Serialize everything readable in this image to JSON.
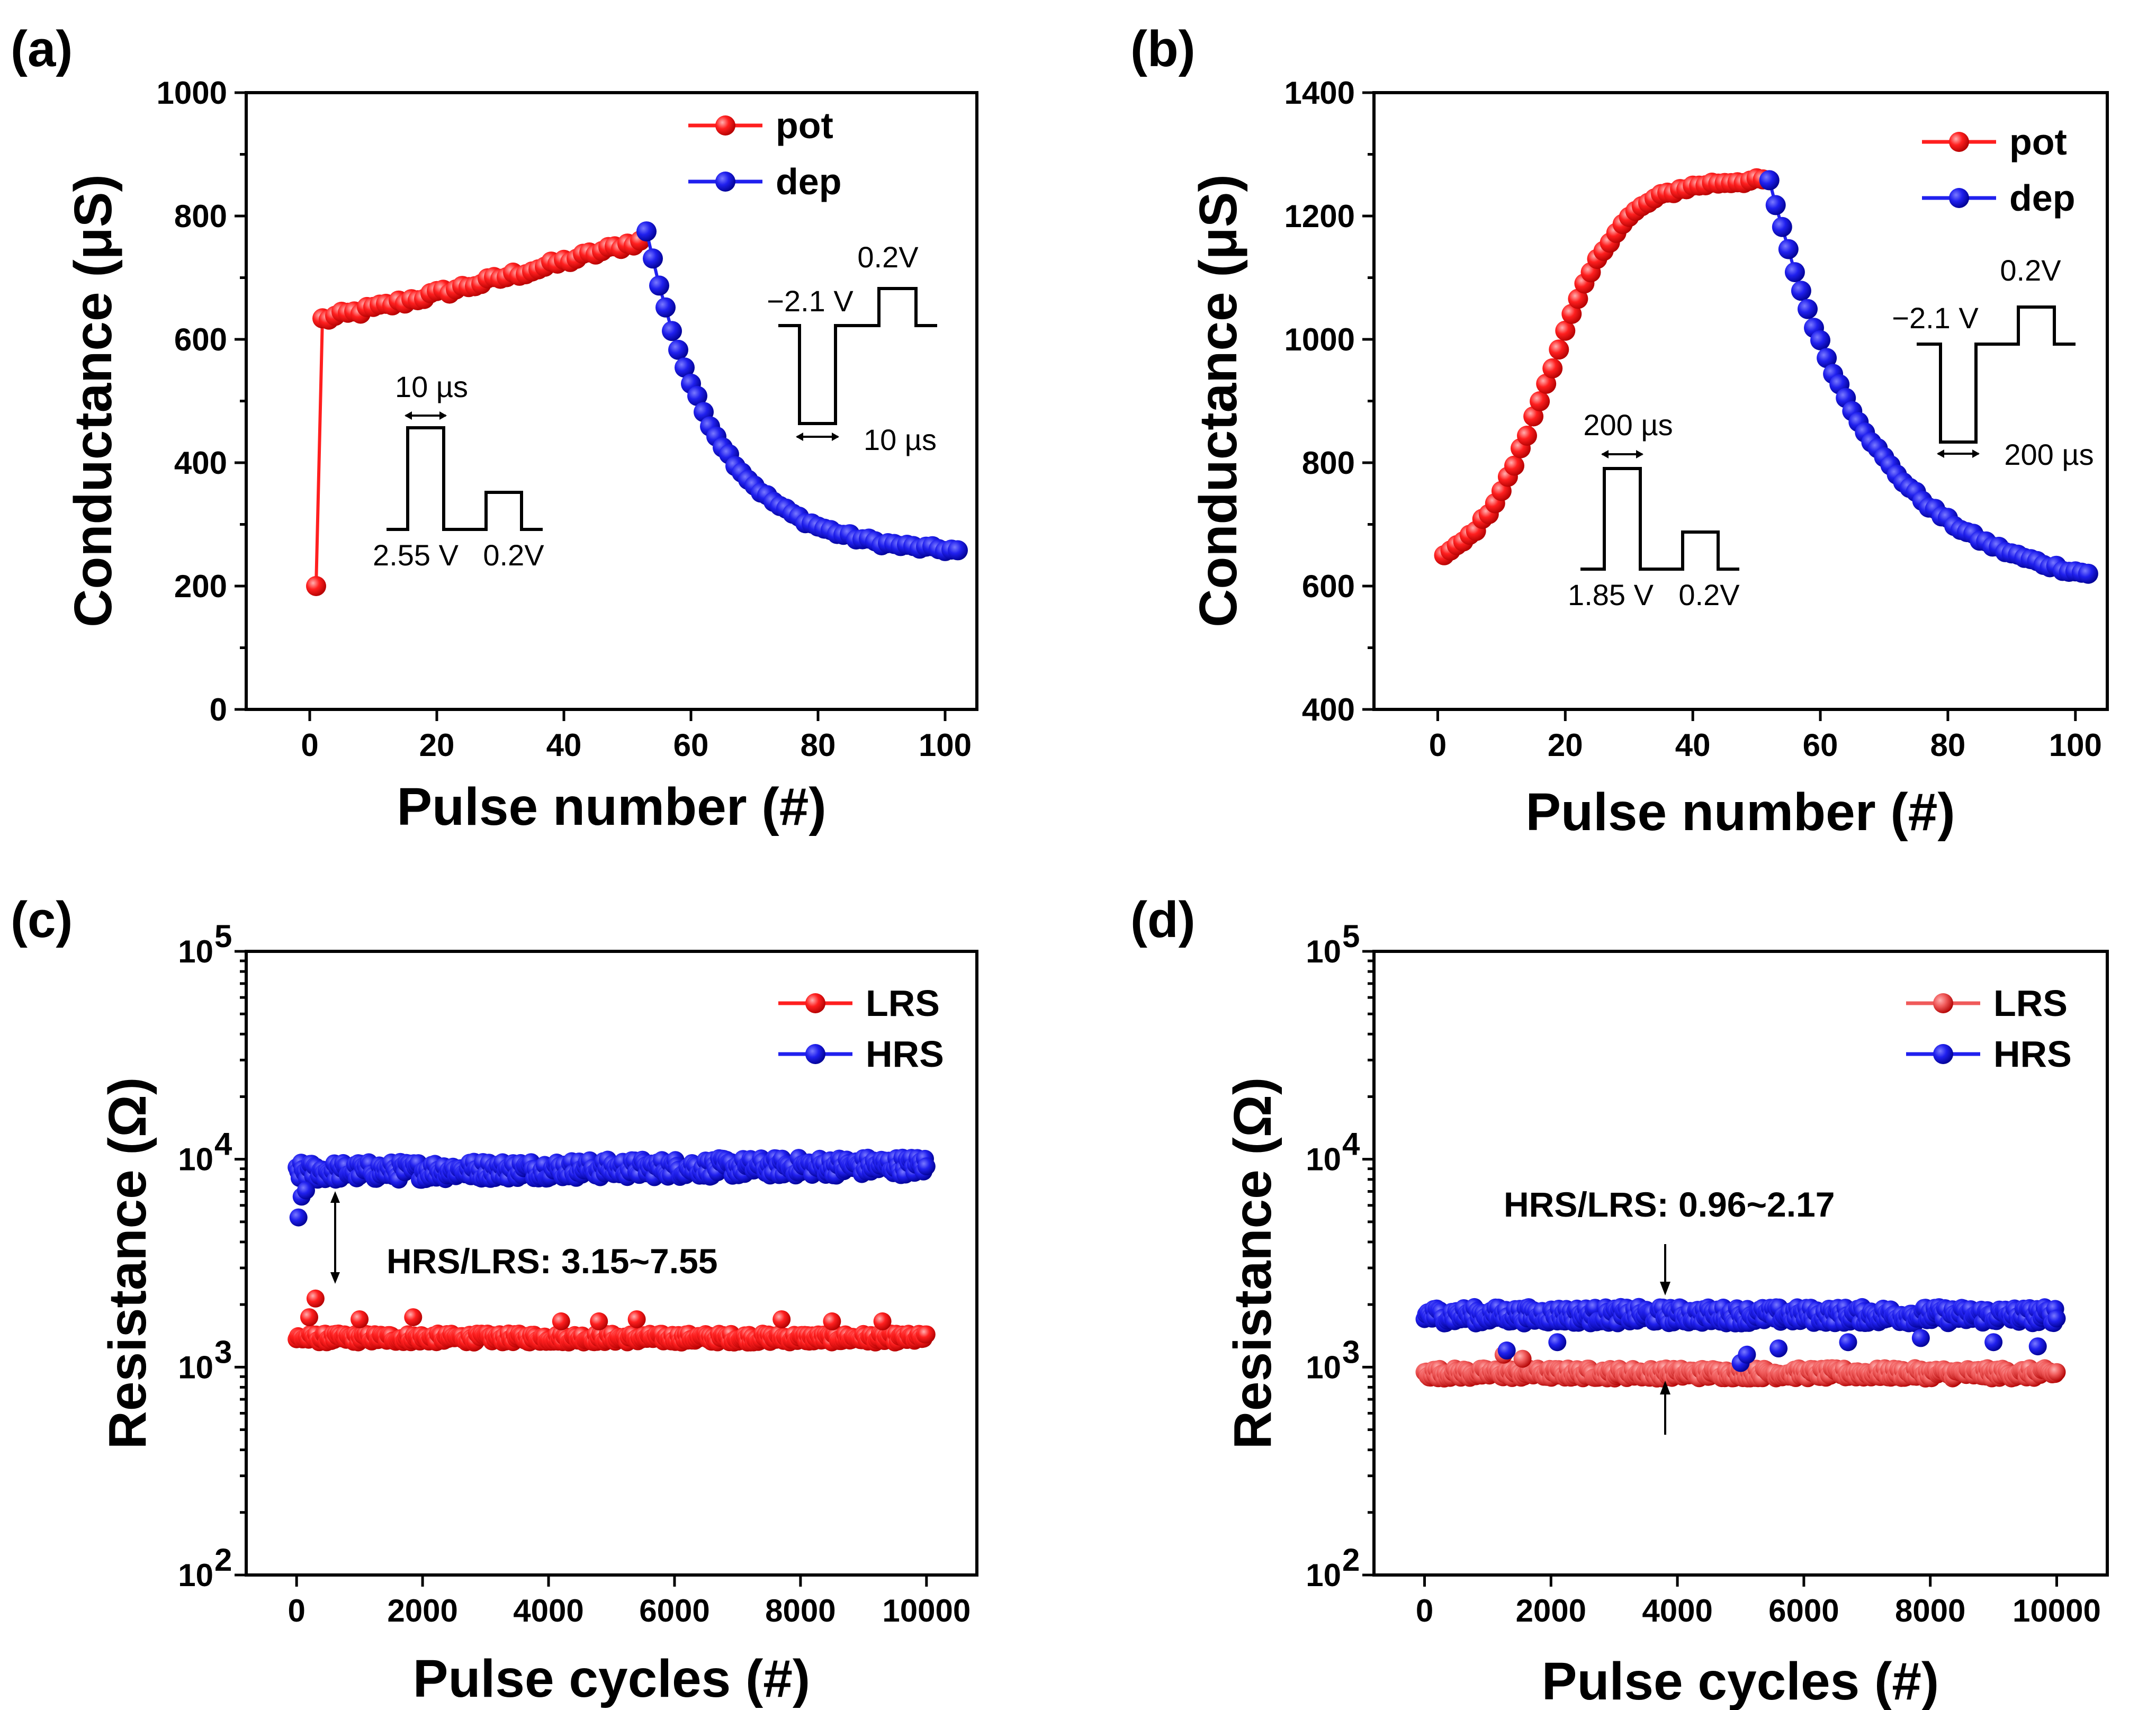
{
  "colors": {
    "red": "#ff1f1f",
    "blue": "#2020ee",
    "light_red": "#f05a5a",
    "dark_red": "#b00000",
    "dark_blue": "#000090",
    "light_blue": "#7a7aff"
  },
  "chart_data": [
    {
      "id": "a",
      "panel_label": "(a)",
      "type": "line",
      "xlabel": "Pulse number (#)",
      "ylabel": "Conductance (μS)",
      "xlim": [
        -10,
        105
      ],
      "ylim": [
        0,
        1000
      ],
      "xticks": [
        "0",
        "20",
        "40",
        "60",
        "80",
        "100"
      ],
      "yticks": [
        "0",
        "200",
        "400",
        "600",
        "800",
        "1000"
      ],
      "series": [
        {
          "name": "pot",
          "color": "red",
          "shape": "smooth",
          "x_start": 1,
          "x_end": 52,
          "start": 630,
          "end": 760,
          "first_point": [
            1,
            200
          ],
          "noise": 6,
          "curvature": -0.15
        },
        {
          "name": "dep",
          "color": "blue",
          "shape": "exp",
          "x_start": 53,
          "x_end": 102,
          "start": 775,
          "end": 258,
          "tau": 11,
          "noise": 4
        }
      ],
      "annotations": {
        "pot_width": "10 µs",
        "pot_amp": "2.55 V",
        "pot_read": "0.2V",
        "dep_amp": "−2.1 V",
        "dep_read": "0.2V",
        "dep_width": "10 µs"
      }
    },
    {
      "id": "b",
      "panel_label": "(b)",
      "type": "line",
      "xlabel": "Pulse number (#)",
      "ylabel": "Conductance (μS)",
      "xlim": [
        -10,
        105
      ],
      "ylim": [
        400,
        1400
      ],
      "xticks": [
        "0",
        "20",
        "40",
        "60",
        "80",
        "100"
      ],
      "yticks": [
        "400",
        "600",
        "800",
        "1000",
        "1200",
        "1400"
      ],
      "series": [
        {
          "name": "pot",
          "color": "red",
          "shape": "sigmoid",
          "x_start": 1,
          "x_end": 52,
          "start": 650,
          "end": 1258,
          "noise": 4
        },
        {
          "name": "dep",
          "color": "blue",
          "shape": "exp",
          "x_start": 52,
          "x_end": 102,
          "start": 1258,
          "end": 620,
          "tau": 16,
          "noise": 4
        }
      ],
      "annotations": {
        "pot_width": "200 µs",
        "pot_amp": "1.85 V",
        "pot_read": "0.2V",
        "dep_amp": "−2.1 V",
        "dep_read": "0.2V",
        "dep_width": "200 µs"
      }
    },
    {
      "id": "c",
      "panel_label": "(c)",
      "type": "scatter",
      "xlabel": "Pulse cycles (#)",
      "ylabel": "Resistance (Ω)",
      "xlim": [
        -800,
        10800
      ],
      "ylim_log10": [
        2,
        5
      ],
      "xticks": [
        "0",
        "2000",
        "4000",
        "6000",
        "8000",
        "10000"
      ],
      "ytick_exponents": [
        "2",
        "3",
        "4",
        "5"
      ],
      "series": [
        {
          "name": "LRS",
          "color": "red",
          "x_range": [
            0,
            10000
          ],
          "log10_center": 3.14,
          "log10_spread": 0.022,
          "outliers": [
            [
              200,
              3.24
            ],
            [
              300,
              3.33
            ],
            [
              1000,
              3.23
            ],
            [
              1850,
              3.24
            ],
            [
              4200,
              3.22
            ],
            [
              4800,
              3.22
            ],
            [
              5400,
              3.23
            ],
            [
              7700,
              3.23
            ],
            [
              8500,
              3.22
            ],
            [
              9300,
              3.22
            ]
          ]
        },
        {
          "name": "HRS",
          "color": "blue",
          "x_range": [
            0,
            10000
          ],
          "log10_center": 3.94,
          "log10_spread": 0.045,
          "trend_end": 3.97,
          "outliers": [
            [
              30,
              3.72
            ],
            [
              80,
              3.82
            ],
            [
              150,
              3.85
            ]
          ]
        }
      ],
      "annotations": {
        "ratio": "HRS/LRS: 3.15~7.55"
      }
    },
    {
      "id": "d",
      "panel_label": "(d)",
      "type": "scatter",
      "xlabel": "Pulse cycles (#)",
      "ylabel": "Resistance (Ω)",
      "xlim": [
        -800,
        10800
      ],
      "ylim_log10": [
        2,
        5
      ],
      "xticks": [
        "0",
        "2000",
        "4000",
        "6000",
        "8000",
        "10000"
      ],
      "ytick_exponents": [
        "2",
        "3",
        "4",
        "5"
      ],
      "series": [
        {
          "name": "LRS",
          "color": "light_red",
          "x_range": [
            0,
            10000
          ],
          "log10_center": 2.97,
          "log10_spread": 0.025,
          "outliers": [
            [
              1250,
              3.06
            ],
            [
              1550,
              3.04
            ]
          ]
        },
        {
          "name": "HRS",
          "color": "blue",
          "x_range": [
            0,
            10000
          ],
          "log10_center": 3.25,
          "log10_spread": 0.04,
          "outliers": [
            [
              1300,
              3.08
            ],
            [
              2100,
              3.12
            ],
            [
              5000,
              3.02
            ],
            [
              5100,
              3.06
            ],
            [
              5600,
              3.09
            ],
            [
              6700,
              3.12
            ],
            [
              7850,
              3.14
            ],
            [
              9000,
              3.12
            ],
            [
              9700,
              3.1
            ]
          ]
        }
      ],
      "annotations": {
        "ratio": "HRS/LRS: 0.96~2.17"
      }
    }
  ]
}
